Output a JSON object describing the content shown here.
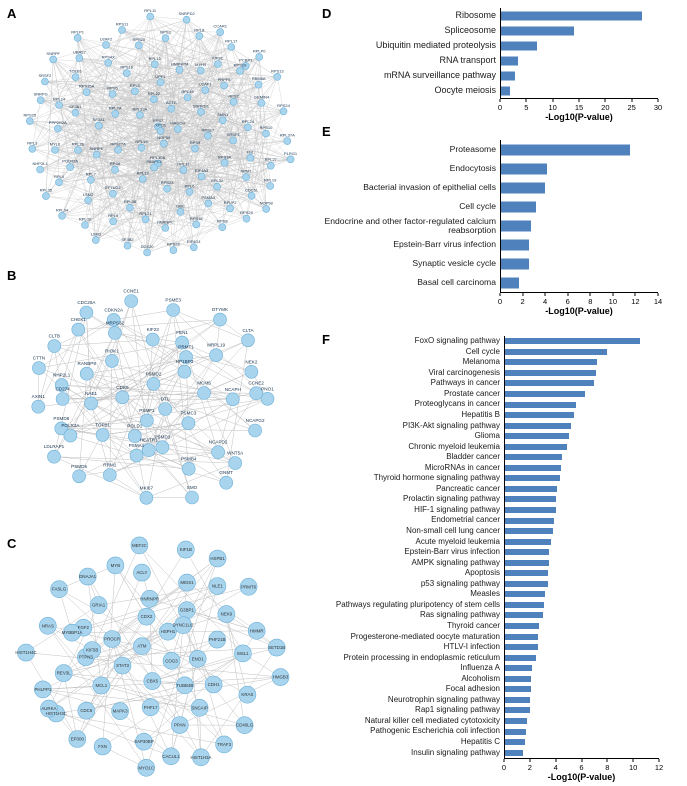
{
  "figure": {
    "panels": {
      "a": {
        "label": "A"
      },
      "b": {
        "label": "B"
      },
      "c": {
        "label": "C"
      },
      "d": {
        "label": "D"
      },
      "e": {
        "label": "E"
      },
      "f": {
        "label": "F"
      }
    },
    "colors": {
      "bar": "#4f81bd",
      "node_fill": "#a8d4ee",
      "node_stroke": "#6bb0d8",
      "edge": "#999999",
      "net_label": "#16324f",
      "net_label_c": "#333333"
    }
  },
  "networks": {
    "a": {
      "node_labels": [
        "PPP2R2A",
        "TCEB1",
        "KIF2C",
        "NPM1",
        "RPL3",
        "RPL4",
        "RPL5",
        "RPL6",
        "RPL7",
        "RPL7A",
        "RPL8",
        "RPL9",
        "RPL10A",
        "RPL11",
        "RPL12",
        "RPL13",
        "RPL14",
        "RPL15",
        "RPL17",
        "RPL18",
        "RPL19",
        "RPL21",
        "RPL22",
        "RPL23A",
        "RPL24",
        "RPL26",
        "RPL27",
        "RPL30",
        "RPL31",
        "RPL32",
        "RPL34",
        "RPL35",
        "RPL37A",
        "RPL38",
        "RPLP0",
        "RPLP1",
        "RPLP2",
        "RPS2",
        "RPS3",
        "RPS3A",
        "RPS4X",
        "RPS5",
        "RPS6",
        "RPS7",
        "RPS8",
        "RPS9",
        "RPS10",
        "RPS11",
        "RPS13",
        "RPS15A",
        "RPS16",
        "RPS17",
        "RPS18",
        "RPS19",
        "RPS20",
        "RPS23",
        "RPS24",
        "RPS25",
        "RPS27A",
        "RPS28",
        "RPS29",
        "SNRPD1",
        "SNRPD2",
        "SNRPE",
        "SNRPF",
        "SNRPG",
        "SF3B1",
        "SF3B2",
        "SF3A1",
        "PRPF8",
        "EFTUD2",
        "LSM2",
        "LSM3",
        "U2AF1",
        "U2AF2",
        "HNRNPC",
        "HNRNPM",
        "SRSF1",
        "SRSF2",
        "NOP56",
        "NOP58",
        "FBL",
        "NHP2L1",
        "EIF4A3",
        "MAGOH",
        "RBM8A",
        "UPF1",
        "SMN1",
        "GEMIN4",
        "DDX20",
        "UBA52",
        "UBC",
        "PSMA3",
        "CDC5L",
        "PLRG1",
        "MYL6",
        "MYH9",
        "ACTB",
        "PCBP1",
        "PABPC1",
        "EIF4G1",
        "POLR2A",
        "CCAR1",
        "XPO1"
      ]
    },
    "b": {
      "node_labels": [
        "RIOK1",
        "PSMD3",
        "PSMD5",
        "PSMD8",
        "PSMD2",
        "PSMC3",
        "PSMB4",
        "PSME3",
        "PSMF1",
        "PSMA1",
        "NCAPH",
        "NCAPG2",
        "NCAPD2",
        "MKI67",
        "MRPS32",
        "MRPL19",
        "NHP2L1",
        "HP1BP3",
        "RANBP9",
        "TGFB1",
        "GNMT",
        "NAE1",
        "RRM1",
        "CCNE1",
        "KIF23",
        "CLTA",
        "CLTB",
        "NEK2",
        "CHEK1",
        "CDK9",
        "DTYMK",
        "SMO",
        "MCM5",
        "FEN1",
        "AXIN1",
        "HEATR1",
        "PNO1",
        "DTL",
        "CDKN2A",
        "POLD1",
        "CDC25A",
        "LDLRAP1",
        "CD274",
        "CTTN",
        "WNT5A",
        "CCNE2",
        "POLR3A",
        "PRMT1"
      ]
    },
    "c": {
      "node_labels": [
        "NRAS",
        "ATM",
        "PHLPP1",
        "SAP30BP",
        "KIF1B",
        "FXN",
        "CACUL1",
        "NLE1",
        "PROCR",
        "CDH1",
        "G3BP1",
        "ACLY",
        "EP300",
        "MCL1",
        "TRAF3",
        "PRMT6",
        "FASLG",
        "KRAS",
        "PTPN3",
        "HSPB1",
        "MEF2C",
        "COG3",
        "MYB",
        "CDC6",
        "PHF21B",
        "HMMR",
        "HIST1H3A",
        "SNCAIP",
        "GRIA1",
        "PHF17",
        "HMGB3",
        "HIST1H4C",
        "FGF2",
        "MEIS1",
        "HIST1H3C",
        "HNRNPR",
        "DNAJA1",
        "MSL1",
        "MAPK3",
        "CBX5",
        "HSPH1",
        "SETD1B",
        "PPAN",
        "MYBBP1A",
        "NEK9",
        "ENO1",
        "AURKA",
        "STAT3",
        "CD40LG",
        "DYNC1LI2",
        "REV3L",
        "TUBB4B",
        "MYO1C",
        "CDX2",
        "KIF5B"
      ]
    }
  },
  "chart_data": [
    {
      "panel": "D",
      "type": "bar",
      "orientation": "horizontal",
      "title": "",
      "xlabel": "-Log10(P-value)",
      "xlim": [
        0,
        30
      ],
      "xticks": [
        0,
        5,
        10,
        15,
        20,
        25,
        30
      ],
      "categories": [
        "Ribosome",
        "Spliceosome",
        "Ubiquitin mediated proteolysis",
        "RNA transport",
        "mRNA surveillance pathway",
        "Oocyte meiosis"
      ],
      "values": [
        27,
        14,
        7,
        3.5,
        2.8,
        1.8
      ]
    },
    {
      "panel": "E",
      "type": "bar",
      "orientation": "horizontal",
      "title": "",
      "xlabel": "-Log10(P-value)",
      "xlim": [
        0,
        14
      ],
      "xticks": [
        0,
        2,
        4,
        6,
        8,
        10,
        12,
        14
      ],
      "categories": [
        "Proteasome",
        "Endocytosis",
        "Bacterial invasion of epithelial cells",
        "Cell cycle",
        "Endocrine and other factor-regulated calcium reabsorption",
        "Epstein-Barr virus infection",
        "Synaptic vesicle cycle",
        "Basal cell carcinoma"
      ],
      "values": [
        11.5,
        4.2,
        4.0,
        3.2,
        2.7,
        2.6,
        2.6,
        1.7
      ]
    },
    {
      "panel": "F",
      "type": "bar",
      "orientation": "horizontal",
      "title": "",
      "xlabel": "-Log10(P-value)",
      "xlim": [
        0,
        12
      ],
      "xticks": [
        0,
        2,
        4,
        6,
        8,
        10,
        12
      ],
      "categories": [
        "FoxO signaling pathway",
        "Cell cycle",
        "Melanoma",
        "Viral carcinogenesis",
        "Pathways in cancer",
        "Prostate cancer",
        "Proteoglycans in cancer",
        "Hepatitis B",
        "PI3K-Akt signaling pathway",
        "Glioma",
        "Chronic myeloid leukemia",
        "Bladder cancer",
        "MicroRNAs in cancer",
        "Thyroid hormone signaling pathway",
        "Pancreatic cancer",
        "Prolactin signaling pathway",
        "HIF-1 signaling pathway",
        "Endometrial cancer",
        "Non-small cell lung cancer",
        "Acute myeloid leukemia",
        "Epstein-Barr virus infection",
        "AMPK signaling pathway",
        "Apoptosis",
        "p53 signaling pathway",
        "Measles",
        "Pathways regulating pluripotency of stem cells",
        "Ras signaling pathway",
        "Thyroid cancer",
        "Progesterone-mediated oocyte maturation",
        "HTLV-I infection",
        "Protein processing in endoplasmic reticulum",
        "Influenza A",
        "Alcoholism",
        "Focal adhesion",
        "Neurotrophin signaling pathway",
        "Rap1 signaling pathway",
        "Natural killer cell mediated cytotoxicity",
        "Pathogenic Escherichia coli infection",
        "Hepatitis C",
        "Insulin signaling pathway"
      ],
      "values": [
        10.5,
        8.0,
        7.2,
        7.1,
        7.0,
        6.3,
        5.6,
        5.4,
        5.2,
        5.0,
        4.9,
        4.5,
        4.4,
        4.3,
        4.1,
        4.0,
        4.0,
        3.9,
        3.8,
        3.6,
        3.5,
        3.5,
        3.4,
        3.4,
        3.2,
        3.1,
        3.0,
        2.7,
        2.6,
        2.6,
        2.5,
        2.2,
        2.1,
        2.1,
        2.0,
        2.0,
        1.8,
        1.7,
        1.6,
        1.5
      ]
    }
  ]
}
